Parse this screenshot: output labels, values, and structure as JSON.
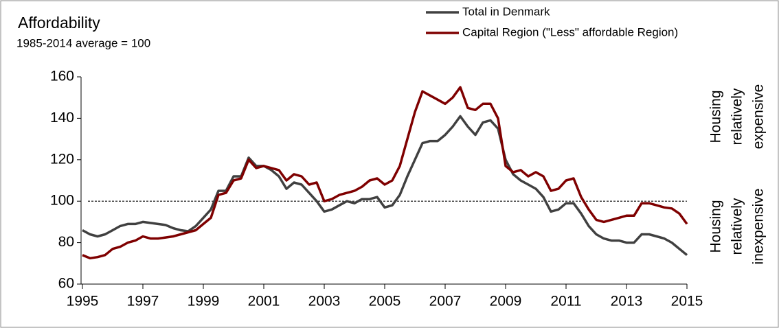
{
  "chart_data": {
    "type": "line",
    "title": "Affordability",
    "subtitle": "1985-2014  average = 100",
    "annotations": [
      [
        "Housing",
        "relatively",
        "expensive"
      ],
      [
        "Housing",
        "relatively",
        "inexpensive"
      ]
    ],
    "reference_line": 100,
    "x": [
      1995,
      1995.25,
      1995.5,
      1995.75,
      1996,
      1996.25,
      1996.5,
      1996.75,
      1997,
      1997.25,
      1997.5,
      1997.75,
      1998,
      1998.25,
      1998.5,
      1998.75,
      1999,
      1999.25,
      1999.5,
      1999.75,
      2000,
      2000.25,
      2000.5,
      2000.75,
      2001,
      2001.25,
      2001.5,
      2001.75,
      2002,
      2002.25,
      2002.5,
      2002.75,
      2003,
      2003.25,
      2003.5,
      2003.75,
      2004,
      2004.25,
      2004.5,
      2004.75,
      2005,
      2005.25,
      2005.5,
      2005.75,
      2006,
      2006.25,
      2006.5,
      2006.75,
      2007,
      2007.25,
      2007.5,
      2007.75,
      2008,
      2008.25,
      2008.5,
      2008.75,
      2009,
      2009.25,
      2009.5,
      2009.75,
      2010,
      2010.25,
      2010.5,
      2010.75,
      2011,
      2011.25,
      2011.5,
      2011.75,
      2012,
      2012.25,
      2012.5,
      2012.75,
      2013,
      2013.25,
      2013.5,
      2013.75,
      2014,
      2014.25,
      2014.5,
      2014.75,
      2015
    ],
    "series": [
      {
        "name": "Total in Denmark",
        "color": "#404040",
        "values": [
          86,
          84,
          83,
          84,
          86,
          88,
          89,
          89,
          90,
          89.5,
          89,
          88.5,
          87,
          86,
          85.5,
          88,
          92,
          96,
          105,
          105,
          112,
          112,
          121,
          117,
          117,
          115,
          112,
          106,
          109,
          108,
          104,
          100,
          95,
          96,
          98,
          100,
          99,
          101,
          101,
          102,
          97,
          98,
          103,
          112,
          120,
          128,
          129,
          129,
          132,
          136,
          141,
          136,
          132,
          138,
          139,
          135,
          120,
          113,
          110,
          108,
          106,
          102,
          95,
          96,
          99,
          99,
          94,
          88,
          84,
          82,
          81,
          81,
          80,
          80,
          84,
          84,
          83,
          82,
          80,
          77,
          74
        ]
      },
      {
        "name": "Capital Region (\"Less\" affordable Region)",
        "color": "#7f0000",
        "values": [
          74,
          72.5,
          73,
          74,
          77,
          78,
          80,
          81,
          83,
          82,
          82,
          82.5,
          83,
          84,
          85,
          86,
          89,
          92,
          103,
          104,
          110,
          111,
          120,
          116,
          117,
          116,
          115,
          110,
          113,
          112,
          108,
          109,
          100,
          101,
          103,
          104,
          105,
          107,
          110,
          111,
          108,
          110,
          117,
          130,
          143,
          153,
          151,
          149,
          147,
          150,
          155,
          145,
          144,
          147,
          147,
          140,
          117,
          114,
          115,
          112,
          114,
          112,
          105,
          106,
          110,
          111,
          102,
          96,
          91,
          90,
          91,
          92,
          93,
          93,
          99,
          99,
          98,
          97,
          96.5,
          94,
          89
        ]
      }
    ],
    "xlim": [
      1995,
      2015
    ],
    "xticks": [
      1995,
      1997,
      1999,
      2001,
      2003,
      2005,
      2007,
      2009,
      2011,
      2013,
      2015
    ],
    "ylim": [
      60,
      160
    ],
    "yticks": [
      60,
      80,
      100,
      120,
      140,
      160
    ]
  }
}
